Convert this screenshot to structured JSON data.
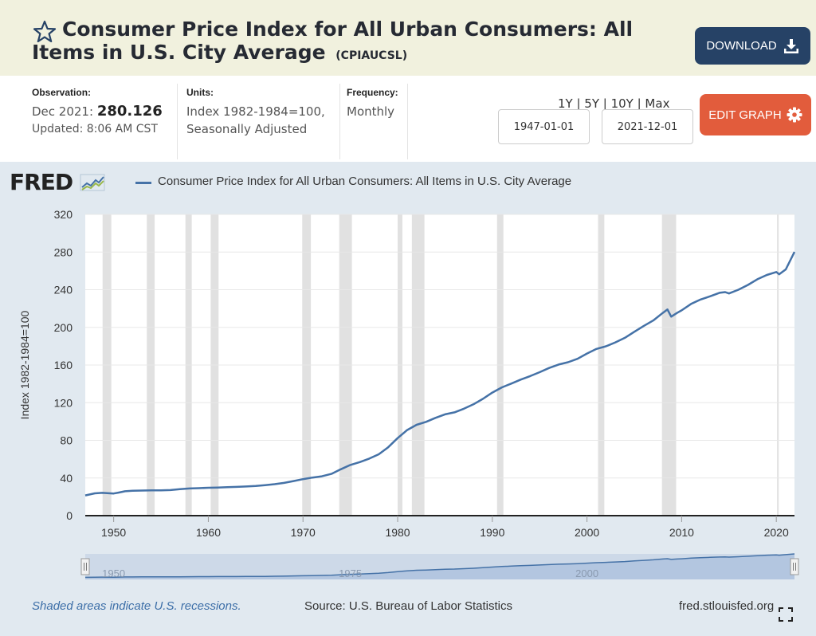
{
  "header": {
    "title": "Consumer Price Index for All Urban Consumers: All Items in U.S. City Average",
    "series_code": "(CPIAUCSL)",
    "download_label": "DOWNLOAD"
  },
  "meta": {
    "observation_label": "Observation:",
    "observation_date": "Dec 2021:",
    "observation_value": "280.126",
    "updated": "Updated: 8:06 AM CST",
    "units_label": "Units:",
    "units_line1": "Index 1982-1984=100,",
    "units_line2": "Seasonally Adjusted",
    "frequency_label": "Frequency:",
    "frequency_value": "Monthly",
    "range_options": "1Y | 5Y | 10Y | Max",
    "start_date": "1947-01-01",
    "end_date": "2021-12-01",
    "edit_label": "EDIT GRAPH"
  },
  "graph": {
    "logo": "FRED",
    "legend": "Consumer Price Index for All Urban Consumers: All Items in U.S. City Average",
    "footer_recessions": "Shaded areas indicate U.S. recessions.",
    "footer_source": "Source: U.S. Bureau of Labor Statistics",
    "footer_site": "fred.stlouisfed.org",
    "navigator_labels": [
      "1950",
      "1975",
      "2000"
    ]
  },
  "colors": {
    "line": "#4572a7",
    "recession": "#e1e1e1",
    "download_button": "#264266",
    "edit_button": "#e25c3c",
    "header_bg": "#f1f1de",
    "graph_bg": "#e1e9f0"
  },
  "chart_data": {
    "type": "line",
    "title": "Consumer Price Index for All Urban Consumers: All Items in U.S. City Average",
    "xlabel": "",
    "ylabel": "Index 1982-1984=100",
    "xlim": [
      1947.0,
      2021.92
    ],
    "ylim": [
      0,
      320
    ],
    "y_ticks": [
      0,
      40,
      80,
      120,
      160,
      200,
      240,
      280,
      320
    ],
    "x_ticks": [
      1950,
      1960,
      1970,
      1980,
      1990,
      2000,
      2010,
      2020
    ],
    "grid": "horizontal",
    "legend_position": "top",
    "series": [
      {
        "name": "Consumer Price Index for All Urban Consumers: All Items in U.S. City Average",
        "x": [
          1947.0,
          1948.0,
          1948.8,
          1950.0,
          1950.5,
          1951.2,
          1952.0,
          1953.0,
          1954.0,
          1955.0,
          1956.0,
          1957.0,
          1958.0,
          1959.0,
          1960.0,
          1961.0,
          1962.0,
          1963.0,
          1964.0,
          1965.0,
          1966.0,
          1967.0,
          1968.0,
          1969.0,
          1970.0,
          1971.0,
          1972.0,
          1973.0,
          1974.0,
          1975.0,
          1976.0,
          1977.0,
          1978.0,
          1979.0,
          1980.0,
          1981.0,
          1982.0,
          1983.0,
          1984.0,
          1985.0,
          1986.0,
          1987.0,
          1988.0,
          1989.0,
          1990.0,
          1991.0,
          1992.0,
          1993.0,
          1994.0,
          1995.0,
          1996.0,
          1997.0,
          1998.0,
          1999.0,
          2000.0,
          2001.0,
          2002.0,
          2003.0,
          2004.0,
          2005.0,
          2006.0,
          2007.0,
          2008.0,
          2008.5,
          2008.9,
          2009.5,
          2010.0,
          2011.0,
          2012.0,
          2013.0,
          2014.0,
          2014.6,
          2015.0,
          2016.0,
          2017.0,
          2018.0,
          2019.0,
          2020.0,
          2020.3,
          2021.0,
          2021.92
        ],
        "values": [
          21.5,
          23.7,
          24.2,
          23.5,
          24.5,
          25.9,
          26.5,
          26.7,
          26.9,
          26.8,
          27.2,
          28.1,
          28.9,
          29.2,
          29.6,
          29.9,
          30.2,
          30.6,
          31.0,
          31.5,
          32.4,
          33.4,
          34.8,
          36.7,
          38.8,
          40.5,
          41.8,
          44.4,
          49.3,
          53.8,
          56.9,
          60.6,
          65.2,
          72.6,
          82.4,
          90.9,
          96.5,
          99.6,
          103.9,
          107.6,
          109.7,
          113.6,
          118.3,
          124.0,
          130.7,
          136.2,
          140.3,
          144.5,
          148.2,
          152.4,
          156.9,
          160.5,
          163.0,
          166.6,
          172.2,
          177.1,
          179.9,
          184.0,
          188.9,
          195.3,
          201.6,
          207.3,
          215.3,
          219.0,
          211.4,
          215.3,
          218.1,
          224.9,
          229.6,
          233.0,
          236.7,
          237.5,
          236.0,
          240.0,
          245.1,
          251.1,
          255.7,
          258.8,
          256.4,
          261.6,
          280.1
        ]
      }
    ],
    "recessions": [
      [
        1948.83,
        1949.75
      ],
      [
        1953.5,
        1954.33
      ],
      [
        1957.58,
        1958.25
      ],
      [
        1960.25,
        1961.08
      ],
      [
        1969.92,
        1970.83
      ],
      [
        1973.83,
        1975.17
      ],
      [
        1980.0,
        1980.5
      ],
      [
        1981.5,
        1982.83
      ],
      [
        1990.5,
        1991.17
      ],
      [
        2001.17,
        2001.83
      ],
      [
        2007.92,
        2009.42
      ],
      [
        2020.08,
        2020.25
      ]
    ]
  }
}
